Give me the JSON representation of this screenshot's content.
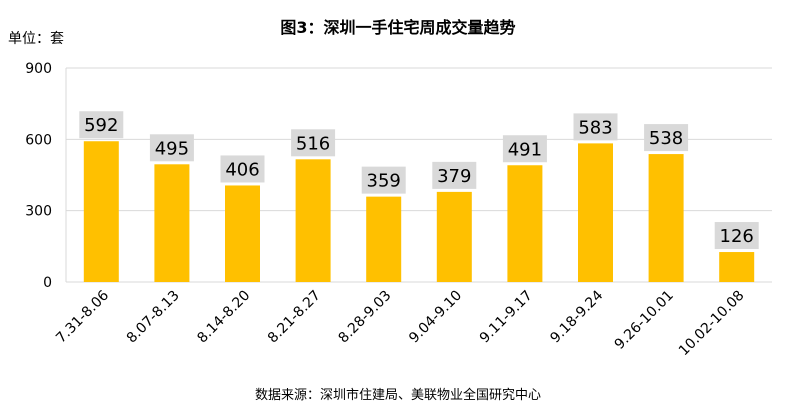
{
  "chart_data": {
    "type": "bar",
    "title": "图3：深圳一手住宅周成交量趋势",
    "unit_label": "单位：套",
    "categories": [
      "7.31-8.06",
      "8.07-8.13",
      "8.14-8.20",
      "8.21-8.27",
      "8.28-9.03",
      "9.04-9.10",
      "9.11-9.17",
      "9.18-9.24",
      "9.26-10.01",
      "10.02-10.08"
    ],
    "values": [
      592,
      495,
      406,
      516,
      359,
      379,
      491,
      583,
      538,
      126
    ],
    "yticks": [
      0,
      300,
      600,
      900
    ],
    "ylim": [
      0,
      900
    ],
    "grid": true,
    "bar_color": "#ffc000",
    "label_box_color": "#d9d9d9",
    "grid_color": "#d9d9d9",
    "source": "数据来源：深圳市住建局、美联物业全国研究中心"
  }
}
